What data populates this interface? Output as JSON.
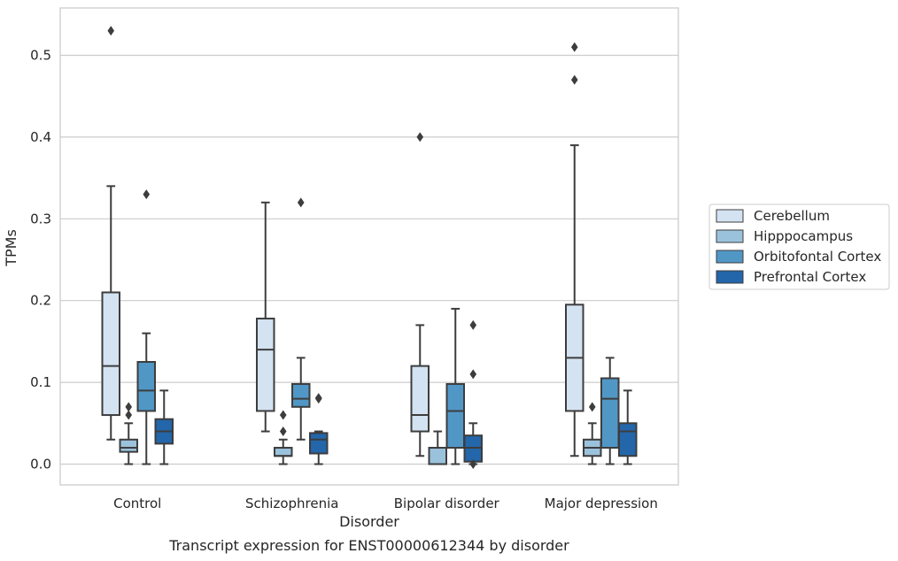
{
  "chart_data": {
    "type": "box",
    "caption": "Transcript expression for ENST00000612344 by disorder",
    "xlabel": "Disorder",
    "ylabel": "TPMs",
    "ylim": [
      -0.025,
      0.557
    ],
    "yticks": [
      "0.0",
      "0.1",
      "0.2",
      "0.3",
      "0.4",
      "0.5"
    ],
    "grid": true,
    "legend_position": "right",
    "categories": [
      "Control",
      "Schizophrenia",
      "Bipolar disorder",
      "Major depression"
    ],
    "series": [
      {
        "name": "Cerebellum",
        "color": "#d4e3f2",
        "boxes": [
          {
            "whisker_low": 0.03,
            "q1": 0.06,
            "median": 0.12,
            "q3": 0.21,
            "whisker_high": 0.34,
            "outliers": [
              0.53
            ]
          },
          {
            "whisker_low": 0.04,
            "q1": 0.065,
            "median": 0.14,
            "q3": 0.178,
            "whisker_high": 0.32,
            "outliers": []
          },
          {
            "whisker_low": 0.01,
            "q1": 0.04,
            "median": 0.06,
            "q3": 0.12,
            "whisker_high": 0.17,
            "outliers": [
              0.4
            ]
          },
          {
            "whisker_low": 0.01,
            "q1": 0.065,
            "median": 0.13,
            "q3": 0.195,
            "whisker_high": 0.39,
            "outliers": [
              0.47,
              0.51
            ]
          }
        ]
      },
      {
        "name": "Hipppocampus",
        "color": "#9bc2dc",
        "boxes": [
          {
            "whisker_low": 0.0,
            "q1": 0.015,
            "median": 0.02,
            "q3": 0.03,
            "whisker_high": 0.05,
            "outliers": [
              0.06,
              0.07
            ]
          },
          {
            "whisker_low": 0.0,
            "q1": 0.01,
            "median": 0.01,
            "q3": 0.02,
            "whisker_high": 0.03,
            "outliers": [
              0.04,
              0.06
            ]
          },
          {
            "whisker_low": 0.0,
            "q1": 0.0,
            "median": 0.0,
            "q3": 0.02,
            "whisker_high": 0.04,
            "outliers": []
          },
          {
            "whisker_low": 0.0,
            "q1": 0.01,
            "median": 0.02,
            "q3": 0.03,
            "whisker_high": 0.05,
            "outliers": [
              0.07
            ]
          }
        ]
      },
      {
        "name": "Orbitofontal Cortex",
        "color": "#5197c6",
        "boxes": [
          {
            "whisker_low": 0.0,
            "q1": 0.065,
            "median": 0.09,
            "q3": 0.125,
            "whisker_high": 0.16,
            "outliers": [
              0.33
            ]
          },
          {
            "whisker_low": 0.03,
            "q1": 0.07,
            "median": 0.08,
            "q3": 0.098,
            "whisker_high": 0.13,
            "outliers": [
              0.32
            ]
          },
          {
            "whisker_low": 0.0,
            "q1": 0.02,
            "median": 0.065,
            "q3": 0.098,
            "whisker_high": 0.19,
            "outliers": []
          },
          {
            "whisker_low": 0.0,
            "q1": 0.02,
            "median": 0.08,
            "q3": 0.105,
            "whisker_high": 0.13,
            "outliers": []
          }
        ]
      },
      {
        "name": "Prefrontal Cortex",
        "color": "#2366aa",
        "boxes": [
          {
            "whisker_low": 0.0,
            "q1": 0.025,
            "median": 0.04,
            "q3": 0.055,
            "whisker_high": 0.09,
            "outliers": []
          },
          {
            "whisker_low": 0.0,
            "q1": 0.013,
            "median": 0.03,
            "q3": 0.038,
            "whisker_high": 0.04,
            "outliers": [
              0.08,
              0.081
            ]
          },
          {
            "whisker_low": 0.0,
            "q1": 0.003,
            "median": 0.02,
            "q3": 0.035,
            "whisker_high": 0.05,
            "outliers": [
              0.0,
              0.11,
              0.17
            ]
          },
          {
            "whisker_low": 0.0,
            "q1": 0.01,
            "median": 0.04,
            "q3": 0.05,
            "whisker_high": 0.09,
            "outliers": []
          }
        ]
      }
    ]
  }
}
